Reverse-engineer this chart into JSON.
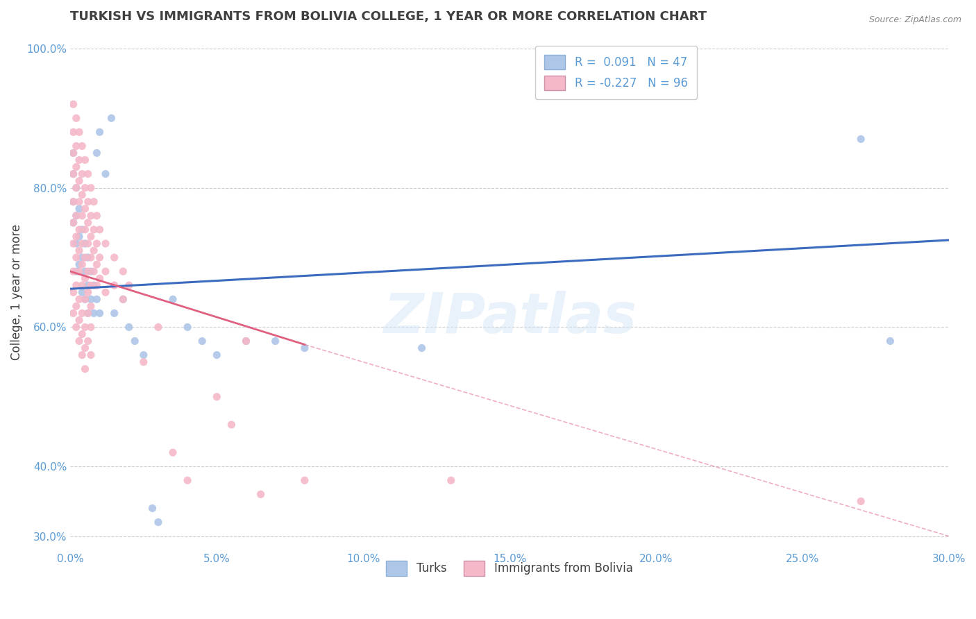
{
  "title": "TURKISH VS IMMIGRANTS FROM BOLIVIA COLLEGE, 1 YEAR OR MORE CORRELATION CHART",
  "source": "Source: ZipAtlas.com",
  "xlabel": "",
  "ylabel": "College, 1 year or more",
  "xlim": [
    0.0,
    0.3
  ],
  "ylim": [
    0.28,
    1.02
  ],
  "yticks": [
    0.3,
    0.4,
    0.6,
    0.8,
    1.0
  ],
  "ytick_labels": [
    "30.0%",
    "40.0%",
    "60.0%",
    "80.0%",
    "100.0%"
  ],
  "xticks": [
    0.0,
    0.05,
    0.1,
    0.15,
    0.2,
    0.25,
    0.3
  ],
  "xtick_labels": [
    "0.0%",
    "5.0%",
    "10.0%",
    "15.0%",
    "20.0%",
    "25.0%",
    "30.0%"
  ],
  "turks_R": 0.091,
  "turks_N": 47,
  "bolivia_R": -0.227,
  "bolivia_N": 96,
  "turks_color": "#aec6e8",
  "bolivia_color": "#f4b8c8",
  "turks_line_color": "#3a6bbf",
  "bolivia_line_color": "#e06080",
  "legend_label_turks": "Turks",
  "legend_label_bolivia": "Immigrants from Bolivia",
  "watermark": "ZIPatlas",
  "title_color": "#404040",
  "axis_color": "#5b9bd5",
  "grid_color": "#c8c8c8",
  "turks_line": [
    0.0,
    0.655,
    0.3,
    0.725
  ],
  "bolivia_line_solid": [
    0.0,
    0.68,
    0.08,
    0.575
  ],
  "bolivia_line_dashed": [
    0.08,
    0.575,
    0.3,
    0.3
  ],
  "turks_scatter": [
    [
      0.001,
      0.78
    ],
    [
      0.001,
      0.75
    ],
    [
      0.001,
      0.82
    ],
    [
      0.001,
      0.85
    ],
    [
      0.002,
      0.8
    ],
    [
      0.002,
      0.76
    ],
    [
      0.002,
      0.72
    ],
    [
      0.002,
      0.68
    ],
    [
      0.003,
      0.77
    ],
    [
      0.003,
      0.73
    ],
    [
      0.003,
      0.69
    ],
    [
      0.004,
      0.74
    ],
    [
      0.004,
      0.7
    ],
    [
      0.004,
      0.65
    ],
    [
      0.005,
      0.72
    ],
    [
      0.005,
      0.68
    ],
    [
      0.005,
      0.64
    ],
    [
      0.006,
      0.7
    ],
    [
      0.006,
      0.66
    ],
    [
      0.006,
      0.62
    ],
    [
      0.007,
      0.68
    ],
    [
      0.007,
      0.64
    ],
    [
      0.008,
      0.66
    ],
    [
      0.008,
      0.62
    ],
    [
      0.009,
      0.85
    ],
    [
      0.009,
      0.64
    ],
    [
      0.01,
      0.88
    ],
    [
      0.01,
      0.62
    ],
    [
      0.012,
      0.82
    ],
    [
      0.014,
      0.9
    ],
    [
      0.015,
      0.62
    ],
    [
      0.018,
      0.64
    ],
    [
      0.02,
      0.6
    ],
    [
      0.022,
      0.58
    ],
    [
      0.025,
      0.56
    ],
    [
      0.028,
      0.34
    ],
    [
      0.03,
      0.32
    ],
    [
      0.035,
      0.64
    ],
    [
      0.04,
      0.6
    ],
    [
      0.045,
      0.58
    ],
    [
      0.05,
      0.56
    ],
    [
      0.06,
      0.58
    ],
    [
      0.07,
      0.58
    ],
    [
      0.08,
      0.57
    ],
    [
      0.12,
      0.57
    ],
    [
      0.27,
      0.87
    ],
    [
      0.28,
      0.58
    ]
  ],
  "bolivia_scatter": [
    [
      0.001,
      0.92
    ],
    [
      0.001,
      0.88
    ],
    [
      0.001,
      0.85
    ],
    [
      0.001,
      0.82
    ],
    [
      0.001,
      0.78
    ],
    [
      0.001,
      0.75
    ],
    [
      0.001,
      0.72
    ],
    [
      0.001,
      0.68
    ],
    [
      0.001,
      0.65
    ],
    [
      0.001,
      0.62
    ],
    [
      0.002,
      0.9
    ],
    [
      0.002,
      0.86
    ],
    [
      0.002,
      0.83
    ],
    [
      0.002,
      0.8
    ],
    [
      0.002,
      0.76
    ],
    [
      0.002,
      0.73
    ],
    [
      0.002,
      0.7
    ],
    [
      0.002,
      0.66
    ],
    [
      0.002,
      0.63
    ],
    [
      0.002,
      0.6
    ],
    [
      0.003,
      0.88
    ],
    [
      0.003,
      0.84
    ],
    [
      0.003,
      0.81
    ],
    [
      0.003,
      0.78
    ],
    [
      0.003,
      0.74
    ],
    [
      0.003,
      0.71
    ],
    [
      0.003,
      0.68
    ],
    [
      0.003,
      0.64
    ],
    [
      0.003,
      0.61
    ],
    [
      0.003,
      0.58
    ],
    [
      0.004,
      0.86
    ],
    [
      0.004,
      0.82
    ],
    [
      0.004,
      0.79
    ],
    [
      0.004,
      0.76
    ],
    [
      0.004,
      0.72
    ],
    [
      0.004,
      0.69
    ],
    [
      0.004,
      0.66
    ],
    [
      0.004,
      0.62
    ],
    [
      0.004,
      0.59
    ],
    [
      0.004,
      0.56
    ],
    [
      0.005,
      0.84
    ],
    [
      0.005,
      0.8
    ],
    [
      0.005,
      0.77
    ],
    [
      0.005,
      0.74
    ],
    [
      0.005,
      0.7
    ],
    [
      0.005,
      0.67
    ],
    [
      0.005,
      0.64
    ],
    [
      0.005,
      0.6
    ],
    [
      0.005,
      0.57
    ],
    [
      0.005,
      0.54
    ],
    [
      0.006,
      0.82
    ],
    [
      0.006,
      0.78
    ],
    [
      0.006,
      0.75
    ],
    [
      0.006,
      0.72
    ],
    [
      0.006,
      0.68
    ],
    [
      0.006,
      0.65
    ],
    [
      0.006,
      0.62
    ],
    [
      0.006,
      0.58
    ],
    [
      0.007,
      0.8
    ],
    [
      0.007,
      0.76
    ],
    [
      0.007,
      0.73
    ],
    [
      0.007,
      0.7
    ],
    [
      0.007,
      0.66
    ],
    [
      0.007,
      0.63
    ],
    [
      0.007,
      0.6
    ],
    [
      0.007,
      0.56
    ],
    [
      0.008,
      0.78
    ],
    [
      0.008,
      0.74
    ],
    [
      0.008,
      0.71
    ],
    [
      0.008,
      0.68
    ],
    [
      0.009,
      0.76
    ],
    [
      0.009,
      0.72
    ],
    [
      0.009,
      0.69
    ],
    [
      0.009,
      0.66
    ],
    [
      0.01,
      0.74
    ],
    [
      0.01,
      0.7
    ],
    [
      0.01,
      0.67
    ],
    [
      0.012,
      0.72
    ],
    [
      0.012,
      0.68
    ],
    [
      0.012,
      0.65
    ],
    [
      0.015,
      0.7
    ],
    [
      0.015,
      0.66
    ],
    [
      0.018,
      0.68
    ],
    [
      0.018,
      0.64
    ],
    [
      0.02,
      0.66
    ],
    [
      0.025,
      0.55
    ],
    [
      0.03,
      0.6
    ],
    [
      0.035,
      0.42
    ],
    [
      0.04,
      0.38
    ],
    [
      0.05,
      0.5
    ],
    [
      0.055,
      0.46
    ],
    [
      0.06,
      0.58
    ],
    [
      0.065,
      0.36
    ],
    [
      0.08,
      0.38
    ],
    [
      0.13,
      0.38
    ],
    [
      0.27,
      0.35
    ]
  ]
}
